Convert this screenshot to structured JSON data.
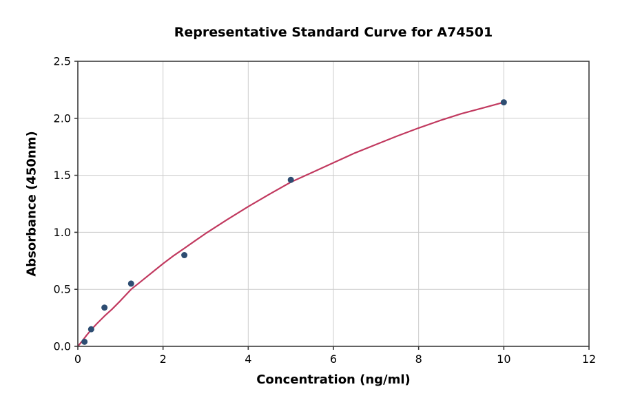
{
  "chart_data": {
    "type": "scatter",
    "title": "Representative Standard Curve for A74501",
    "xlabel": "Concentration (ng/ml)",
    "ylabel": "Absorbance (450nm)",
    "xlim": [
      0,
      12
    ],
    "ylim": [
      0,
      2.5
    ],
    "grid": true,
    "legend": "none",
    "x_ticks": [
      {
        "v": 0,
        "label": "0"
      },
      {
        "v": 2,
        "label": "2"
      },
      {
        "v": 4,
        "label": "4"
      },
      {
        "v": 6,
        "label": "6"
      },
      {
        "v": 8,
        "label": "8"
      },
      {
        "v": 10,
        "label": "10"
      },
      {
        "v": 12,
        "label": "12"
      }
    ],
    "y_ticks": [
      {
        "v": 0.0,
        "label": "0.0"
      },
      {
        "v": 0.5,
        "label": "0.5"
      },
      {
        "v": 1.0,
        "label": "1.0"
      },
      {
        "v": 1.5,
        "label": "1.5"
      },
      {
        "v": 2.0,
        "label": "2.0"
      },
      {
        "v": 2.5,
        "label": "2.5"
      }
    ],
    "points": [
      [
        0.156,
        0.04
      ],
      [
        0.3125,
        0.15
      ],
      [
        0.625,
        0.34
      ],
      [
        1.25,
        0.55
      ],
      [
        2.5,
        0.8
      ],
      [
        5.0,
        1.46
      ],
      [
        10.0,
        2.14
      ]
    ],
    "fit_curve": [
      [
        0,
        0
      ],
      [
        0.1,
        0.045
      ],
      [
        0.2,
        0.095
      ],
      [
        0.3,
        0.14
      ],
      [
        0.45,
        0.2
      ],
      [
        0.625,
        0.265
      ],
      [
        0.8,
        0.325
      ],
      [
        1.0,
        0.4
      ],
      [
        1.25,
        0.5
      ],
      [
        1.5,
        0.575
      ],
      [
        1.75,
        0.65
      ],
      [
        2.0,
        0.725
      ],
      [
        2.25,
        0.795
      ],
      [
        2.5,
        0.86
      ],
      [
        2.75,
        0.925
      ],
      [
        3.0,
        0.99
      ],
      [
        3.5,
        1.11
      ],
      [
        4.0,
        1.225
      ],
      [
        4.5,
        1.335
      ],
      [
        5.0,
        1.44
      ],
      [
        5.5,
        1.525
      ],
      [
        6.0,
        1.61
      ],
      [
        6.5,
        1.695
      ],
      [
        7.0,
        1.77
      ],
      [
        7.5,
        1.845
      ],
      [
        8.0,
        1.915
      ],
      [
        8.5,
        1.98
      ],
      [
        9.0,
        2.04
      ],
      [
        9.5,
        2.09
      ],
      [
        10.0,
        2.14
      ]
    ],
    "colors": {
      "marker": "#2e4d72",
      "curve": "#c1395f",
      "grid": "#cccccc",
      "axis": "#3c3c3c",
      "text": "#000000"
    }
  }
}
